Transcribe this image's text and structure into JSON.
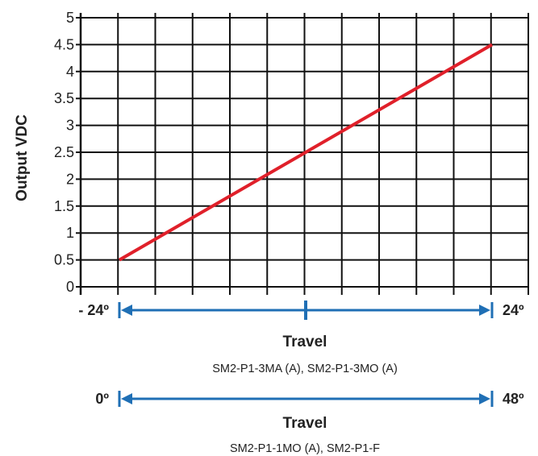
{
  "chart_data": {
    "type": "line",
    "title": "",
    "ylabel": "Output VDC",
    "ylim": [
      0,
      5
    ],
    "yticks": [
      "0",
      "0.5",
      "1",
      "1.5",
      "2",
      "2.5",
      "3",
      "3.5",
      "4",
      "4.5",
      "5"
    ],
    "grid": true,
    "series": [
      {
        "x": [
          -24,
          24
        ],
        "y": [
          0.5,
          4.5
        ]
      }
    ],
    "line_color": "#e0202a",
    "travel_color": "#1f6fb5",
    "scales": [
      {
        "start_label": "- 24º",
        "end_label": "24º",
        "title": "Travel",
        "models": "SM2-P1-3MA (A), SM2-P1-3MO (A)",
        "center_tick": true
      },
      {
        "start_label": "0º",
        "end_label": "48º",
        "title": "Travel",
        "models": "SM2-P1-1MO (A), SM2-P1-F",
        "center_tick": false
      }
    ]
  }
}
